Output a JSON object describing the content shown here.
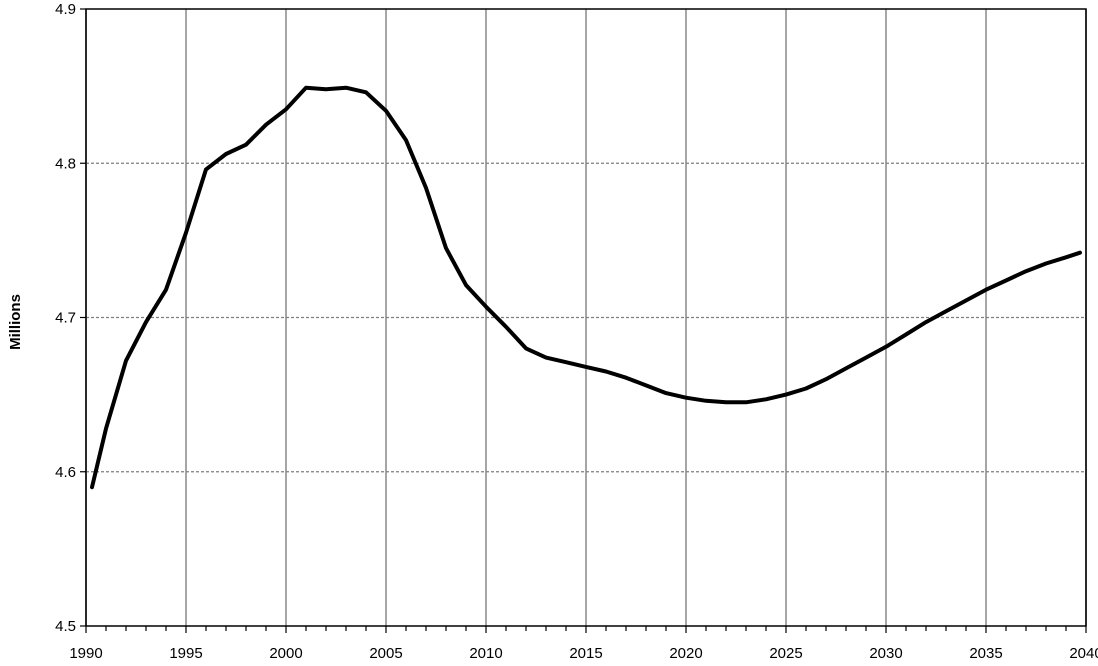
{
  "chart_data": {
    "type": "line",
    "title": "",
    "xlabel": "",
    "ylabel": "Millions",
    "xlim": [
      1990,
      2040
    ],
    "ylim": [
      4.5,
      4.9
    ],
    "x_ticks": [
      "1990",
      "1995",
      "2000",
      "2005",
      "2010",
      "2015",
      "2020",
      "2025",
      "2030",
      "2035",
      "2040"
    ],
    "y_ticks": [
      "4.5",
      "4.6",
      "4.7",
      "4.8",
      "4.9"
    ],
    "vertical_grid": true,
    "horizontal_grid": "dashed",
    "series": [
      {
        "color": "#000000",
        "points": [
          [
            1990.3,
            4.59
          ],
          [
            1991.0,
            4.628
          ],
          [
            1992.0,
            4.672
          ],
          [
            1993.0,
            4.697
          ],
          [
            1994.0,
            4.718
          ],
          [
            1995.0,
            4.755
          ],
          [
            1996.0,
            4.796
          ],
          [
            1997.0,
            4.806
          ],
          [
            1998.0,
            4.812
          ],
          [
            1999.0,
            4.825
          ],
          [
            2000.0,
            4.835
          ],
          [
            2001.0,
            4.849
          ],
          [
            2002.0,
            4.848
          ],
          [
            2003.0,
            4.849
          ],
          [
            2004.0,
            4.846
          ],
          [
            2005.0,
            4.834
          ],
          [
            2006.0,
            4.815
          ],
          [
            2007.0,
            4.784
          ],
          [
            2008.0,
            4.745
          ],
          [
            2009.0,
            4.721
          ],
          [
            2010.0,
            4.707
          ],
          [
            2011.0,
            4.694
          ],
          [
            2012.0,
            4.68
          ],
          [
            2013.0,
            4.674
          ],
          [
            2014.0,
            4.671
          ],
          [
            2015.0,
            4.668
          ],
          [
            2016.0,
            4.665
          ],
          [
            2017.0,
            4.661
          ],
          [
            2018.0,
            4.656
          ],
          [
            2019.0,
            4.651
          ],
          [
            2020.0,
            4.648
          ],
          [
            2021.0,
            4.646
          ],
          [
            2022.0,
            4.645
          ],
          [
            2023.0,
            4.645
          ],
          [
            2024.0,
            4.647
          ],
          [
            2025.0,
            4.65
          ],
          [
            2026.0,
            4.654
          ],
          [
            2027.0,
            4.66
          ],
          [
            2028.0,
            4.667
          ],
          [
            2029.0,
            4.674
          ],
          [
            2030.0,
            4.681
          ],
          [
            2031.0,
            4.689
          ],
          [
            2032.0,
            4.697
          ],
          [
            2033.0,
            4.704
          ],
          [
            2034.0,
            4.711
          ],
          [
            2035.0,
            4.718
          ],
          [
            2036.0,
            4.724
          ],
          [
            2037.0,
            4.73
          ],
          [
            2038.0,
            4.735
          ],
          [
            2039.0,
            4.739
          ],
          [
            2039.7,
            4.742
          ]
        ]
      }
    ]
  }
}
